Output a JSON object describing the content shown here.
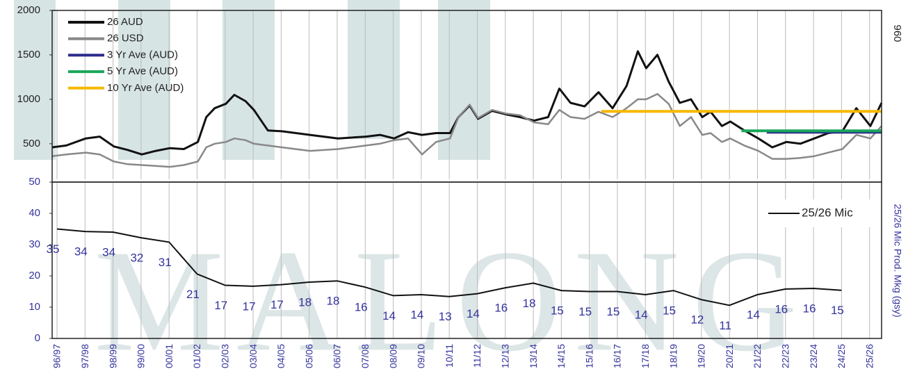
{
  "watermark": "MALONG",
  "chart_data": [
    {
      "type": "line",
      "annotation": "960",
      "ylim": [
        100,
        2000
      ],
      "yticks": [
        500,
        1000,
        1500,
        2000
      ],
      "xlim": [
        -0.2,
        29.4
      ],
      "legend": "upper left",
      "series": [
        {
          "name": "26 AUD",
          "color": "#111111",
          "width": 3,
          "x": [
            -0.2,
            0.3,
            1,
            1.5,
            2,
            2.5,
            3,
            3.5,
            4,
            4.5,
            5,
            5.3,
            5.6,
            6,
            6.3,
            6.7,
            7,
            7.5,
            8,
            9,
            10,
            11,
            11.5,
            12,
            12.5,
            13,
            13.5,
            14,
            14.3,
            14.7,
            15,
            15.5,
            16,
            16.5,
            17,
            17.5,
            17.9,
            18.3,
            18.8,
            19.3,
            19.8,
            20.3,
            20.7,
            21,
            21.4,
            21.8,
            22.2,
            22.6,
            23,
            23.3,
            23.7,
            24,
            24.5,
            25,
            25.5,
            26,
            26.5,
            27,
            27.5,
            28,
            28.5,
            29,
            29.4
          ],
          "values": [
            460,
            480,
            560,
            580,
            470,
            430,
            380,
            420,
            450,
            440,
            520,
            800,
            900,
            950,
            1050,
            980,
            880,
            650,
            640,
            600,
            560,
            580,
            600,
            560,
            630,
            600,
            620,
            620,
            800,
            930,
            780,
            870,
            830,
            800,
            760,
            800,
            1120,
            960,
            920,
            1080,
            900,
            1150,
            1540,
            1350,
            1500,
            1200,
            960,
            1000,
            800,
            860,
            700,
            750,
            650,
            560,
            460,
            520,
            500,
            560,
            620,
            640,
            900,
            700,
            960
          ]
        },
        {
          "name": "26 USD",
          "color": "#888888",
          "width": 2.5,
          "x": [
            -0.2,
            0.3,
            1,
            1.5,
            2,
            2.5,
            3,
            3.5,
            4,
            4.5,
            5,
            5.3,
            5.6,
            6,
            6.3,
            6.7,
            7,
            7.5,
            8,
            9,
            10,
            11,
            11.5,
            12,
            12.5,
            13,
            13.5,
            14,
            14.3,
            14.7,
            15,
            15.5,
            16,
            16.5,
            17,
            17.5,
            17.9,
            18.3,
            18.8,
            19.3,
            19.8,
            20.3,
            20.7,
            21,
            21.4,
            21.8,
            22.2,
            22.6,
            23,
            23.3,
            23.7,
            24,
            24.5,
            25,
            25.5,
            26,
            26.5,
            27,
            27.5,
            28,
            28.5,
            29,
            29.4
          ],
          "values": [
            360,
            380,
            400,
            380,
            300,
            270,
            260,
            250,
            240,
            260,
            300,
            460,
            500,
            520,
            560,
            540,
            500,
            480,
            460,
            420,
            440,
            480,
            500,
            540,
            560,
            380,
            520,
            560,
            800,
            940,
            790,
            880,
            840,
            820,
            740,
            720,
            880,
            800,
            780,
            860,
            800,
            900,
            1000,
            1000,
            1060,
            950,
            700,
            800,
            600,
            620,
            520,
            560,
            480,
            420,
            330,
            330,
            340,
            360,
            400,
            440,
            600,
            560,
            700
          ]
        },
        {
          "name": "3 Yr Ave (AUD)",
          "color": "#2b2b8c",
          "width": 4,
          "x": [
            25.3,
            29.4
          ],
          "values": [
            630,
            630
          ]
        },
        {
          "name": "5 Yr Ave (AUD)",
          "color": "#1aa65a",
          "width": 4,
          "x": [
            24.4,
            29.4
          ],
          "values": [
            645,
            645
          ]
        },
        {
          "name": "10 Yr Ave (AUD)",
          "color": "#f5b800",
          "width": 4,
          "x": [
            19.4,
            29.4
          ],
          "values": [
            865,
            865
          ]
        }
      ]
    },
    {
      "type": "line",
      "y_axis_label": "25/26 Mic Prod. Mkg (gsy)",
      "series_name": "25/26 Mic",
      "color": "#111111",
      "label_color": "#33339e",
      "ylim": [
        0,
        50
      ],
      "yticks": [
        0,
        10,
        20,
        30,
        40,
        50
      ],
      "categories": [
        "96/97",
        "97/98",
        "98/99",
        "99/00",
        "00/01",
        "01/02",
        "02/03",
        "03/04",
        "04/05",
        "05/06",
        "06/07",
        "07/08",
        "08/09",
        "09/10",
        "10/11",
        "11/12",
        "12/13",
        "13/14",
        "14/15",
        "15/16",
        "16/17",
        "17/18",
        "18/19",
        "19/20",
        "20/21",
        "21/22",
        "22/23",
        "23/24",
        "24/25",
        "25/26"
      ],
      "values": [
        35,
        34.2,
        34,
        32.2,
        30.8,
        20.6,
        17,
        16.7,
        17.2,
        18,
        18.4,
        16.4,
        13.7,
        14,
        13.4,
        14.3,
        16.2,
        17.7,
        15.3,
        15,
        15,
        14,
        15.3,
        12.4,
        10.6,
        14,
        15.8,
        16,
        15.4,
        null
      ],
      "value_labels": [
        "35",
        "34",
        "34",
        "32",
        "31",
        "21",
        "17",
        "17",
        "17",
        "18",
        "18",
        "16",
        "14",
        "14",
        "13",
        "14",
        "16",
        "18",
        "15",
        "15",
        "15",
        "14",
        "15",
        "12",
        "11",
        "14",
        "16",
        "16",
        "15",
        null
      ]
    }
  ]
}
